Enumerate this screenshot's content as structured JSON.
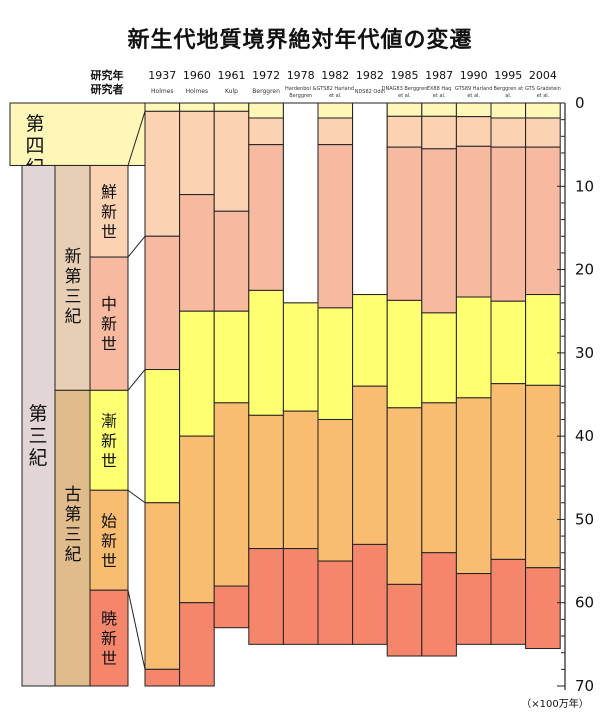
{
  "title": "新生代地質境界絶対年代値の変遷",
  "header_labels": {
    "year_label": "研究年",
    "researcher_label": "研究者"
  },
  "unit_label": "（×100万年）",
  "colors": {
    "quaternary": "#fff7b8",
    "paleogene_bg": "#e2d5d6",
    "neogene_group": "#e6cfb4",
    "paleogene_group": "#e0bb8c",
    "pliocene": "#fbd2b2",
    "miocene": "#f7b9a0",
    "oligocene": "#ffff72",
    "eocene": "#f8bd70",
    "paleocene": "#f5866b"
  },
  "geology_labels": {
    "quaternary": "第四紀",
    "tertiary": "第三紀",
    "neogene": "新第三紀",
    "paleogene": "古第三紀",
    "pliocene": "鮮新世",
    "miocene": "中新世",
    "oligocene": "漸新世",
    "eocene": "始新世",
    "paleocene": "暁新世"
  },
  "chart_data": {
    "type": "bar",
    "ylabel": "（×100万年）",
    "ylim": [
      0,
      70
    ],
    "y_ticks": [
      0,
      10,
      20,
      30,
      40,
      50,
      60,
      70
    ],
    "boundary_order": [
      "Pleistocene base",
      "Pliocene base",
      "Miocene base",
      "Oligocene base",
      "Eocene base",
      "Paleocene base"
    ],
    "columns": [
      {
        "year": "1937",
        "researcher": "Holmes",
        "boundaries": [
          1,
          16,
          32,
          48,
          68,
          70
        ]
      },
      {
        "year": "1960",
        "researcher": "Holmes",
        "boundaries": [
          1,
          11,
          25,
          40,
          60,
          70
        ]
      },
      {
        "year": "1961",
        "researcher": "Kulp",
        "boundaries": [
          1,
          13,
          25,
          36,
          58,
          63
        ]
      },
      {
        "year": "1972",
        "researcher": "Berggren",
        "boundaries": [
          1.8,
          5,
          22.5,
          37.5,
          53.5,
          65
        ]
      },
      {
        "year": "1978",
        "researcher": "Hardenbol & Berggren",
        "boundaries": [
          null,
          null,
          24,
          37,
          53.5,
          65
        ]
      },
      {
        "year": "1982",
        "researcher": "GTS82 Harland et al.",
        "boundaries": [
          1.8,
          5,
          24.6,
          38,
          55,
          65
        ]
      },
      {
        "year": "1982",
        "researcher": "NDS82 Odin",
        "boundaries": [
          null,
          null,
          23,
          34,
          53,
          65
        ]
      },
      {
        "year": "1985",
        "researcher": "DNAG83 Berggren et al.",
        "boundaries": [
          1.6,
          5.3,
          23.7,
          36.6,
          57.8,
          66.4
        ]
      },
      {
        "year": "1987",
        "researcher": "EX88 Haq et al.",
        "boundaries": [
          1.6,
          5.5,
          25.2,
          36,
          54,
          66.4
        ]
      },
      {
        "year": "1990",
        "researcher": "GTS89 Harland et al.",
        "boundaries": [
          1.64,
          5.2,
          23.3,
          35.4,
          56.5,
          65
        ]
      },
      {
        "year": "1995",
        "researcher": "Berggren et al.",
        "boundaries": [
          1.8,
          5.3,
          23.8,
          33.7,
          54.8,
          65
        ]
      },
      {
        "year": "2004",
        "researcher": "GTS Gradstein et al.",
        "boundaries": [
          1.8,
          5.3,
          23,
          33.9,
          55.8,
          65.5
        ]
      }
    ],
    "left_scale": {
      "quaternary_base": 7.5,
      "neogene_pliocene_base": 18.5,
      "neogene_base": 34.5,
      "oligocene_base": 46.5,
      "eocene_base": 58.5,
      "tertiary_base": 70
    }
  }
}
